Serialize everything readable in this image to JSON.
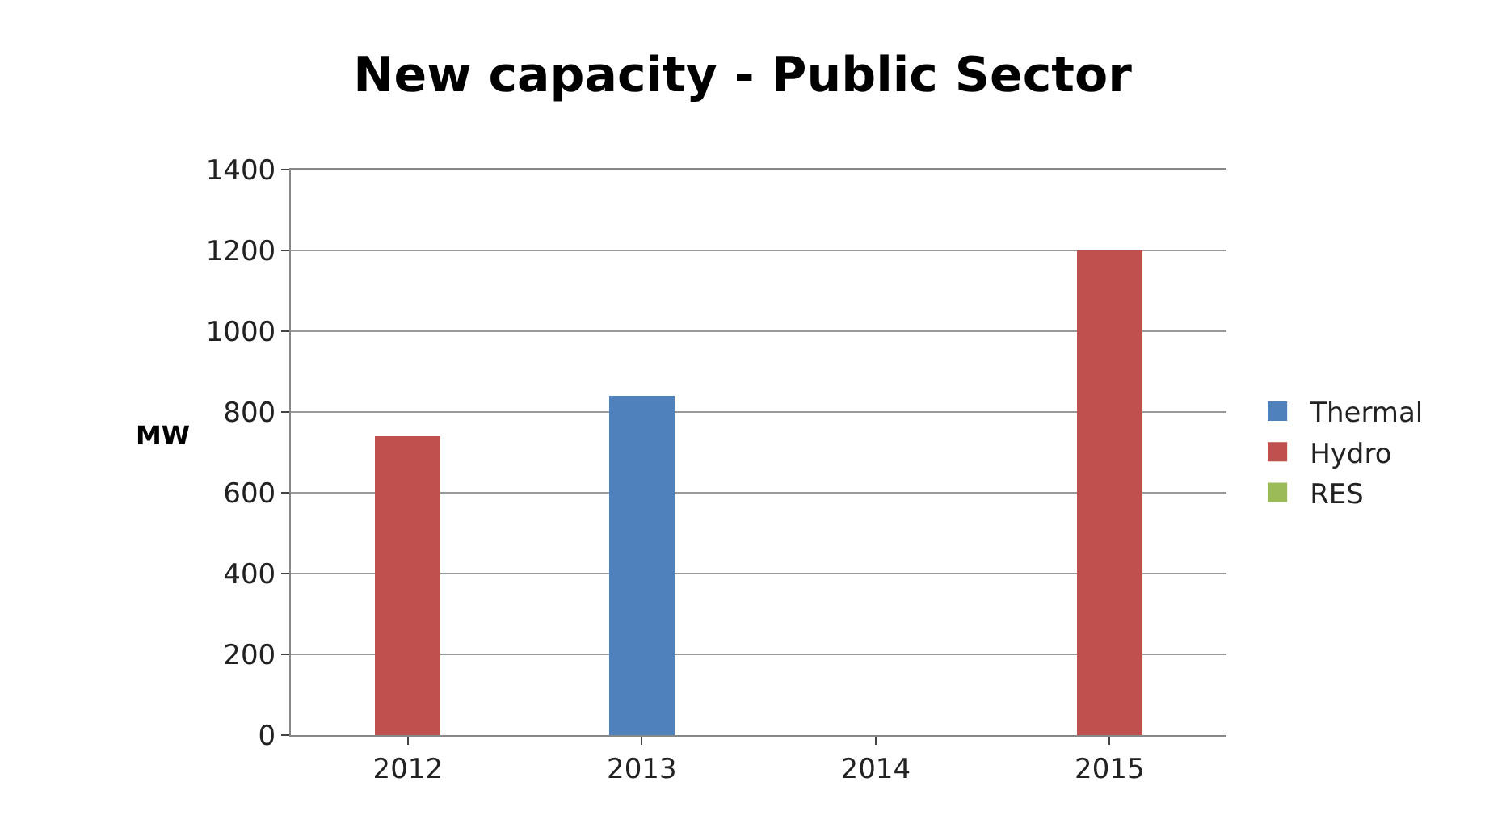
{
  "chart_data": {
    "type": "bar",
    "title": "New capacity - Public Sector",
    "ylabel": "MW",
    "categories": [
      "2012",
      "2013",
      "2014",
      "2015"
    ],
    "series": [
      {
        "name": "Thermal",
        "color": "#4f81bd",
        "values": [
          null,
          840,
          null,
          null
        ]
      },
      {
        "name": "Hydro",
        "color": "#c0504d",
        "values": [
          740,
          null,
          null,
          1200
        ]
      },
      {
        "name": "RES",
        "color": "#9bbb59",
        "values": [
          null,
          null,
          null,
          null
        ]
      }
    ],
    "stacked": true,
    "ylim": [
      0,
      1400
    ],
    "yticks": [
      0,
      200,
      400,
      600,
      800,
      1000,
      1200,
      1400
    ],
    "grid": "y",
    "legend": "right"
  }
}
